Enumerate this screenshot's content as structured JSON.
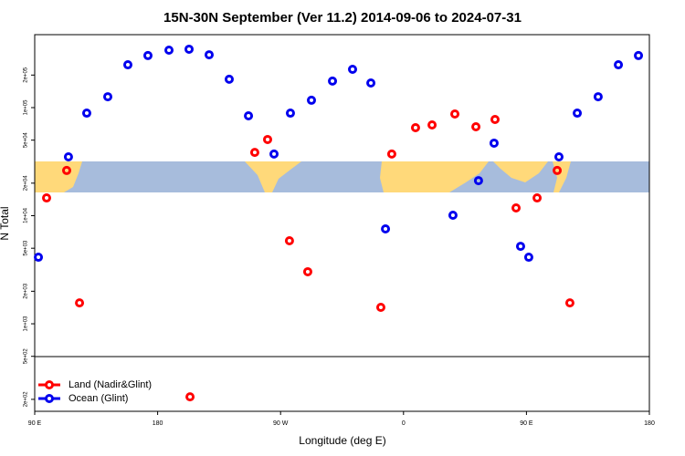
{
  "chart_data": {
    "type": "scatter",
    "title": "15N-30N September (Ver 11.2)   2014-09-06 to 2024-07-31",
    "x_label": "Longitude (deg E)",
    "y_label": "N Total",
    "xlim": [
      90,
      540
    ],
    "xticks": [
      {
        "value": 90,
        "label": "90 E"
      },
      {
        "value": 180,
        "label": "180"
      },
      {
        "value": 270,
        "label": "90 W"
      },
      {
        "value": 360,
        "label": "0"
      },
      {
        "value": 450,
        "label": "90 E"
      },
      {
        "value": 540,
        "label": "180"
      }
    ],
    "ylim": [
      155,
      473000
    ],
    "ylog": true,
    "yticks": [
      200,
      500,
      1000,
      2000,
      5000,
      10000,
      20000,
      50000,
      100000,
      200000
    ],
    "ytick_labels": [
      "2e+02",
      "5e+02",
      "1e+03",
      "2e+03",
      "5e+03",
      "1e+04",
      "2e+04",
      "5e+04",
      "1e+05",
      "2e+05"
    ],
    "legend": "bottom-left",
    "series": [
      {
        "name": "Land (Nadir&Glint)",
        "color": "#ff0000",
        "x": [
          98.7,
          113.4,
          122.8,
          203.7,
          251.1,
          260.5,
          276.5,
          289.9,
          343.4,
          351.4,
          368.8,
          380.9,
          397.6,
          413.0,
          427.0,
          442.4,
          457.8,
          472.5,
          481.8
        ],
        "values": [
          14600,
          26200,
          1560,
          211,
          38500,
          50700,
          5860,
          3030,
          1420,
          37200,
          65200,
          69100,
          87300,
          66500,
          77700,
          11800,
          14600,
          26200,
          1560
        ]
      },
      {
        "name": "Ocean (Glint)",
        "color": "#0000ee",
        "x": [
          92.7,
          114.7,
          128.1,
          143.5,
          158.2,
          172.9,
          188.3,
          203.0,
          217.7,
          232.4,
          246.5,
          265.2,
          277.2,
          292.6,
          308.0,
          322.7,
          336.1,
          346.8,
          396.2,
          414.9,
          426.3,
          445.7,
          451.7,
          473.8,
          487.2,
          502.5,
          517.3,
          532.0
        ],
        "values": [
          4130,
          35000,
          88900,
          126000,
          249000,
          303000,
          340000,
          347000,
          308000,
          183000,
          83900,
          37200,
          88900,
          117000,
          176000,
          226000,
          169000,
          7550,
          10100,
          21100,
          46900,
          5210,
          4130,
          35000,
          88900,
          126000,
          249000,
          303000
        ]
      }
    ]
  }
}
